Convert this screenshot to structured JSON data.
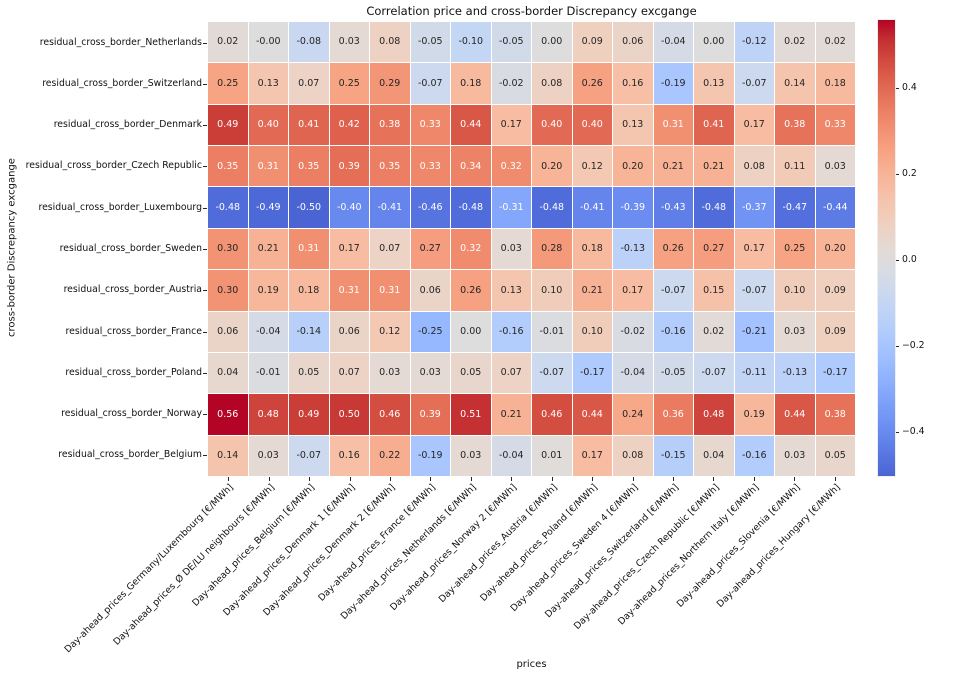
{
  "chart_data": {
    "type": "heatmap",
    "title": "Correlation price and cross-border Discrepancy excgange",
    "xlabel": "prices",
    "ylabel": "cross-border Discrepancy excgange",
    "colormap": "coolwarm",
    "color_scale": {
      "vmin": -0.56,
      "vmax": 0.56,
      "center": 0
    },
    "colorbar": {
      "top_value": 0.56,
      "bottom_value": -0.5,
      "ticks": [
        {
          "value": 0.4,
          "label": "0.4"
        },
        {
          "value": 0.2,
          "label": "0.2"
        },
        {
          "value": 0.0,
          "label": "0.0"
        },
        {
          "value": -0.2,
          "label": "−0.2"
        },
        {
          "value": -0.4,
          "label": "−0.4"
        }
      ]
    },
    "rows": [
      "residual_cross_border_Netherlands",
      "residual_cross_border_Switzerland",
      "residual_cross_border_Denmark",
      "residual_cross_border_Czech Republic",
      "residual_cross_border_Luxembourg",
      "residual_cross_border_Sweden",
      "residual_cross_border_Austria",
      "residual_cross_border_France",
      "residual_cross_border_Poland",
      "residual_cross_border_Norway",
      "residual_cross_border_Belgium"
    ],
    "columns": [
      "Day-ahead_prices_Germany/Luxembourg [€/MWh]",
      "Day-ahead_prices_Ø DE/LU neighbours [€/MWh]",
      "Day-ahead_prices_Belgium [€/MWh]",
      "Day-ahead_prices_Denmark 1 [€/MWh]",
      "Day-ahead_prices_Denmark 2 [€/MWh]",
      "Day-ahead_prices_France [€/MWh]",
      "Day-ahead_prices_Netherlands [€/MWh]",
      "Day-ahead_prices_Norway 2 [€/MWh]",
      "Day-ahead_prices_Austria [€/MWh]",
      "Day-ahead_prices_Poland [€/MWh]",
      "Day-ahead_prices_Sweden 4 [€/MWh]",
      "Day-ahead_prices_Switzerland [€/MWh]",
      "Day-ahead_prices_Czech Republic [€/MWh]",
      "Day-ahead_prices_Northern Italy [€/MWh]",
      "Day-ahead_prices_Slovenia [€/MWh]",
      "Day-ahead_prices_Hungary [€/MWh]"
    ],
    "values": [
      [
        "0.02",
        "-0.00",
        "-0.08",
        "0.03",
        "0.08",
        "-0.05",
        "-0.10",
        "-0.05",
        "0.00",
        "0.09",
        "0.06",
        "-0.04",
        "0.00",
        "-0.12",
        "0.02",
        "0.02"
      ],
      [
        "0.25",
        "0.13",
        "0.07",
        "0.25",
        "0.29",
        "-0.07",
        "0.18",
        "-0.02",
        "0.08",
        "0.26",
        "0.16",
        "-0.19",
        "0.13",
        "-0.07",
        "0.14",
        "0.18"
      ],
      [
        "0.49",
        "0.40",
        "0.41",
        "0.42",
        "0.38",
        "0.33",
        "0.44",
        "0.17",
        "0.40",
        "0.40",
        "0.13",
        "0.31",
        "0.41",
        "0.17",
        "0.38",
        "0.33"
      ],
      [
        "0.35",
        "0.31",
        "0.35",
        "0.39",
        "0.35",
        "0.33",
        "0.34",
        "0.32",
        "0.20",
        "0.12",
        "0.20",
        "0.21",
        "0.21",
        "0.08",
        "0.11",
        "0.03"
      ],
      [
        "-0.48",
        "-0.49",
        "-0.50",
        "-0.40",
        "-0.41",
        "-0.46",
        "-0.48",
        "-0.31",
        "-0.48",
        "-0.41",
        "-0.39",
        "-0.43",
        "-0.48",
        "-0.37",
        "-0.47",
        "-0.44"
      ],
      [
        "0.30",
        "0.21",
        "0.31",
        "0.17",
        "0.07",
        "0.27",
        "0.32",
        "0.03",
        "0.28",
        "0.18",
        "-0.13",
        "0.26",
        "0.27",
        "0.17",
        "0.25",
        "0.20"
      ],
      [
        "0.30",
        "0.19",
        "0.18",
        "0.31",
        "0.31",
        "0.06",
        "0.26",
        "0.13",
        "0.10",
        "0.21",
        "0.17",
        "-0.07",
        "0.15",
        "-0.07",
        "0.10",
        "0.09"
      ],
      [
        "0.06",
        "-0.04",
        "-0.14",
        "0.06",
        "0.12",
        "-0.25",
        "0.00",
        "-0.16",
        "-0.01",
        "0.10",
        "-0.02",
        "-0.16",
        "0.02",
        "-0.21",
        "0.03",
        "0.09"
      ],
      [
        "0.04",
        "-0.01",
        "0.05",
        "0.07",
        "0.03",
        "0.03",
        "0.05",
        "0.07",
        "-0.07",
        "-0.17",
        "-0.04",
        "-0.05",
        "-0.07",
        "-0.11",
        "-0.13",
        "-0.17"
      ],
      [
        "0.56",
        "0.48",
        "0.49",
        "0.50",
        "0.46",
        "0.39",
        "0.51",
        "0.21",
        "0.46",
        "0.44",
        "0.24",
        "0.36",
        "0.48",
        "0.19",
        "0.44",
        "0.38"
      ],
      [
        "0.14",
        "0.03",
        "-0.07",
        "0.16",
        "0.22",
        "-0.19",
        "0.03",
        "-0.04",
        "0.01",
        "0.17",
        "0.08",
        "-0.15",
        "0.04",
        "-0.16",
        "0.03",
        "0.05"
      ]
    ],
    "colors": {
      "background": "#ffffff",
      "grid_line": "#ffffff",
      "cell_text_dark": "#262626",
      "cell_text_light": "#ffffff",
      "max_red": "#b40426",
      "min_blue": "#3b4cc0"
    }
  }
}
